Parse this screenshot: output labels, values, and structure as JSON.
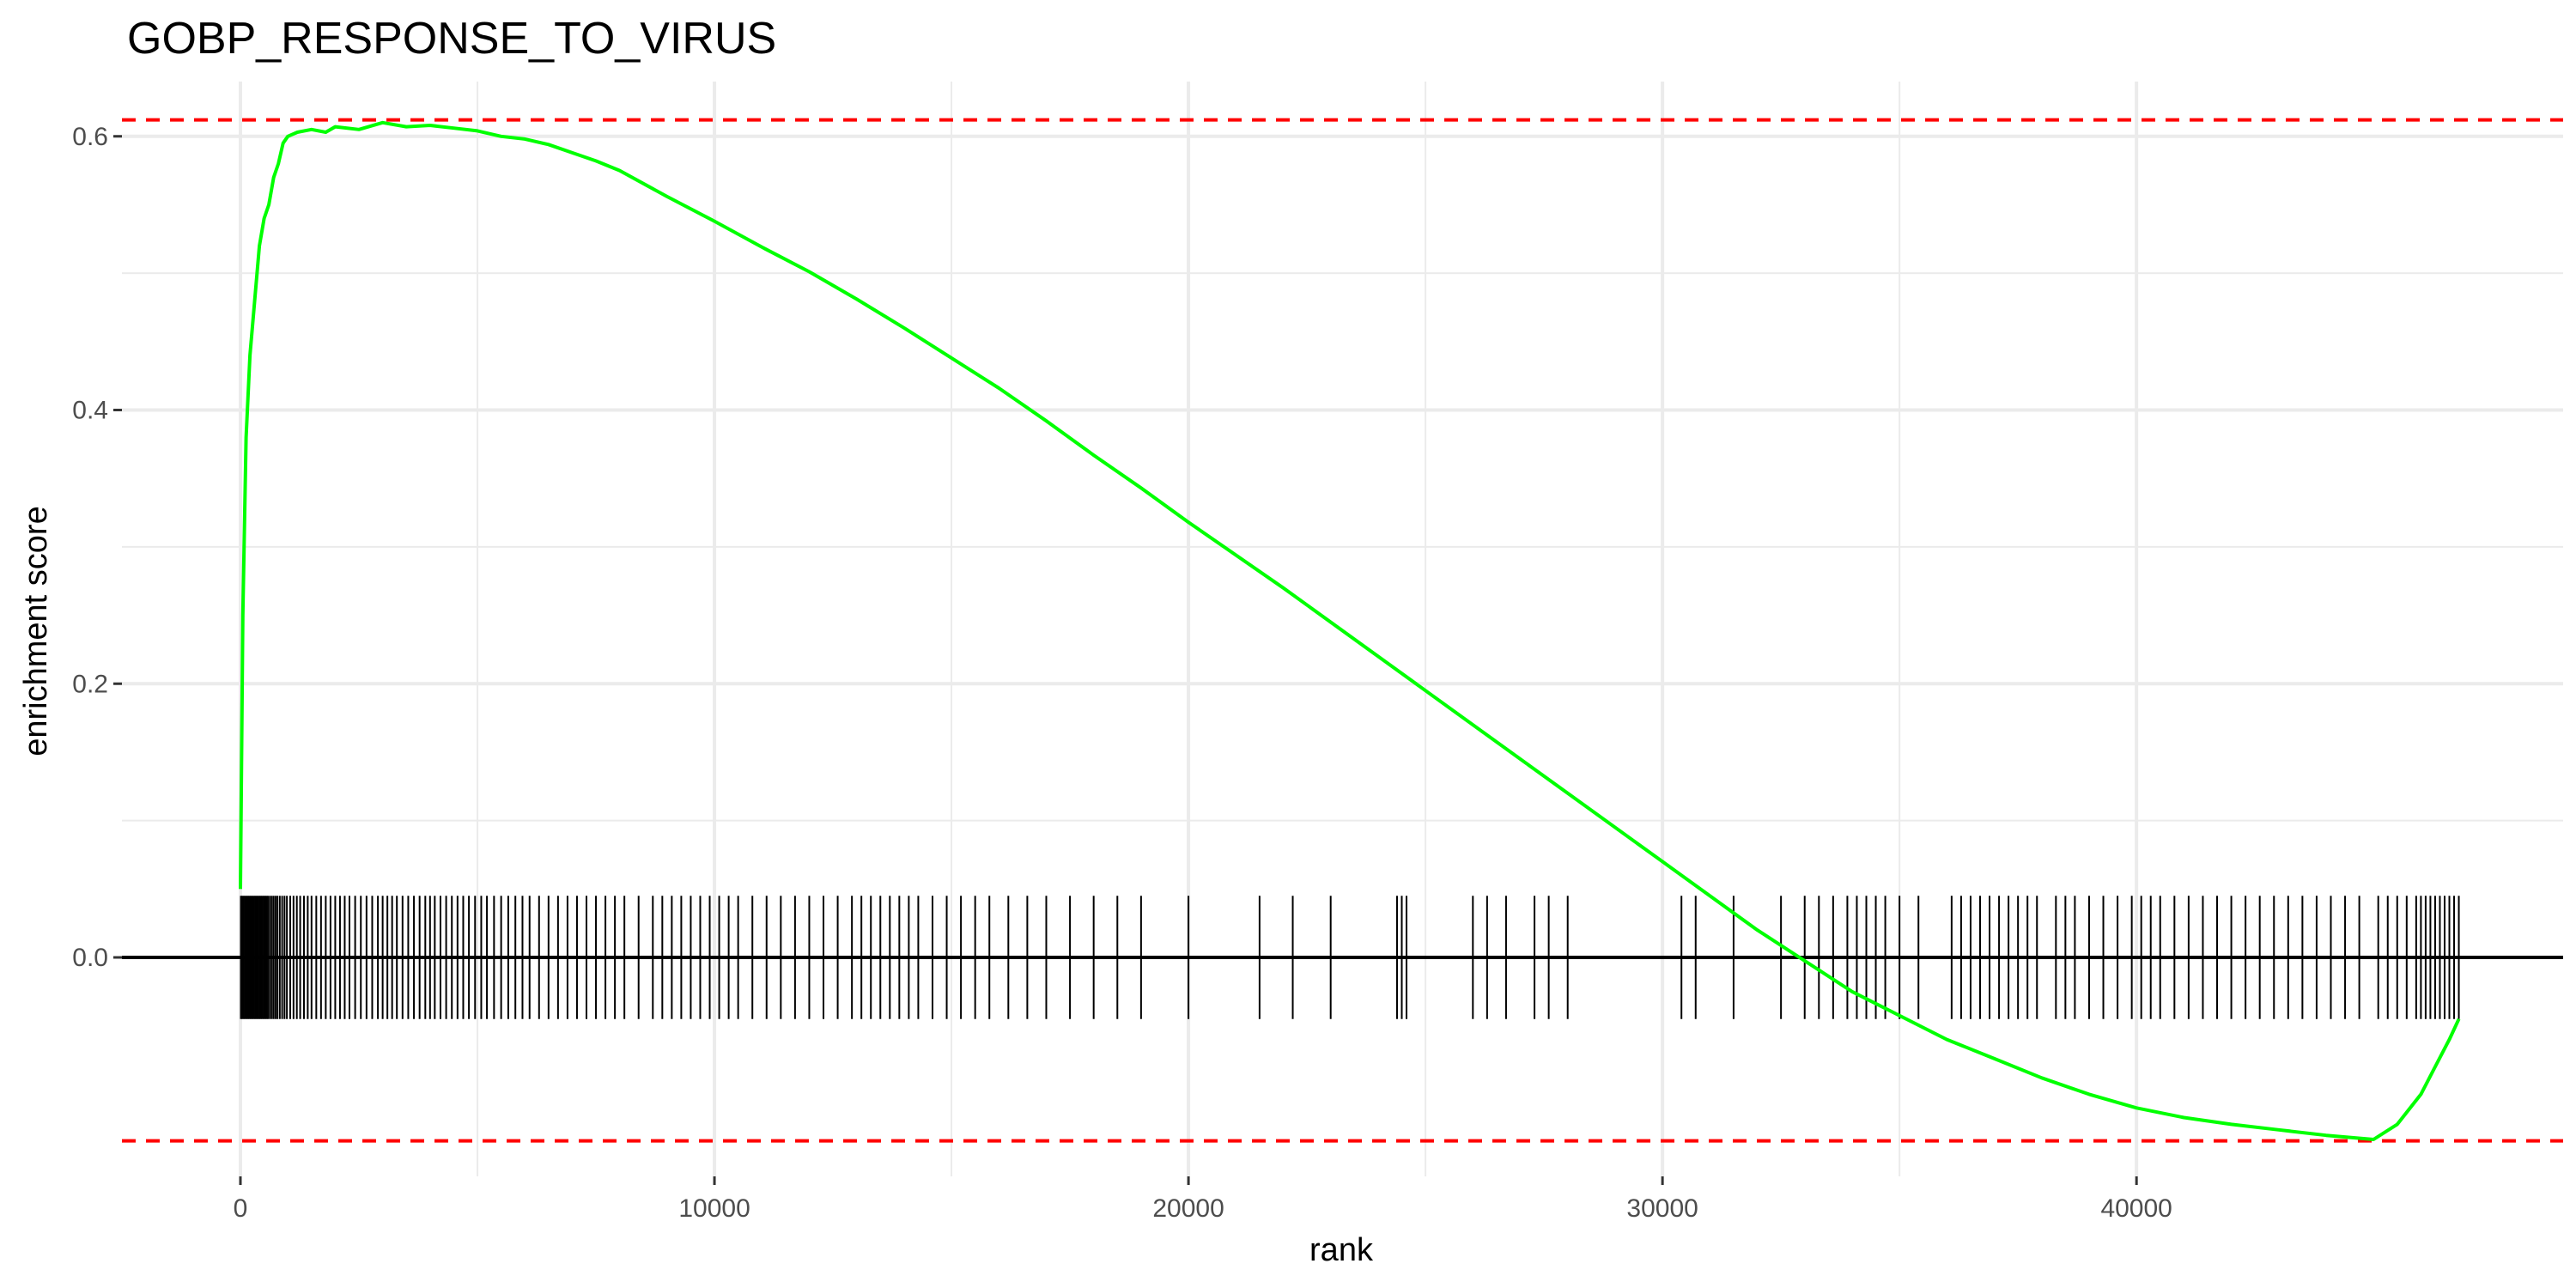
{
  "chart_data": {
    "type": "line",
    "title": "GOBP_RESPONSE_TO_VIRUS",
    "xlabel": "rank",
    "ylabel": "enrichment score",
    "xlim": [
      -2500,
      49000
    ],
    "ylim": [
      -0.16,
      0.64
    ],
    "xticks": [
      0,
      10000,
      20000,
      30000,
      40000
    ],
    "yticks": [
      0.0,
      0.2,
      0.4,
      0.6
    ],
    "xtick_labels": [
      "0",
      "10000",
      "20000",
      "30000",
      "40000"
    ],
    "ytick_labels": [
      "0.0",
      "0.2",
      "0.4",
      "0.6"
    ],
    "grid": true,
    "colors": {
      "curve": "#00ff00",
      "threshold": "#ff0000",
      "ticks": "#000000",
      "zero_line": "#000000",
      "grid": "#ebebeb"
    },
    "thresholds": {
      "max": 0.612,
      "min": -0.134
    },
    "series": [
      {
        "x": [
          0,
          50,
          120,
          200,
          300,
          400,
          500,
          600,
          700,
          800,
          900,
          1000,
          1200,
          1500,
          1800,
          2000,
          2500,
          3000,
          3500,
          4000,
          4500,
          5000,
          5500,
          6000,
          6500,
          7000,
          7500,
          8000,
          9000,
          10000,
          11000,
          12000,
          13000,
          14000,
          15000,
          16000,
          17000,
          18000,
          19000,
          20000,
          22000,
          24000,
          26000,
          28000,
          30000,
          32000,
          34000,
          36000,
          37000,
          38000,
          39000,
          40000,
          41000,
          42000,
          43000,
          44000,
          45000,
          45500,
          46000,
          46300,
          46600,
          46800
        ],
        "y": [
          0.05,
          0.25,
          0.38,
          0.44,
          0.48,
          0.52,
          0.54,
          0.55,
          0.57,
          0.58,
          0.595,
          0.6,
          0.603,
          0.605,
          0.603,
          0.607,
          0.605,
          0.61,
          0.607,
          0.608,
          0.606,
          0.604,
          0.6,
          0.598,
          0.594,
          0.588,
          0.582,
          0.575,
          0.556,
          0.538,
          0.519,
          0.501,
          0.481,
          0.46,
          0.438,
          0.416,
          0.392,
          0.367,
          0.343,
          0.318,
          0.27,
          0.22,
          0.17,
          0.12,
          0.07,
          0.02,
          -0.025,
          -0.06,
          -0.074,
          -0.088,
          -0.1,
          -0.11,
          -0.117,
          -0.122,
          -0.126,
          -0.13,
          -0.133,
          -0.122,
          -0.1,
          -0.08,
          -0.06,
          -0.045
        ]
      }
    ],
    "gene_hits": [
      10,
      40,
      70,
      100,
      130,
      160,
      190,
      220,
      250,
      280,
      310,
      340,
      370,
      400,
      430,
      460,
      490,
      520,
      550,
      580,
      620,
      660,
      700,
      740,
      780,
      830,
      880,
      930,
      980,
      1050,
      1120,
      1190,
      1260,
      1340,
      1420,
      1500,
      1600,
      1700,
      1800,
      1900,
      2000,
      2100,
      2200,
      2300,
      2420,
      2540,
      2660,
      2780,
      2900,
      3000,
      3100,
      3200,
      3300,
      3420,
      3540,
      3660,
      3780,
      3900,
      4000,
      4100,
      4220,
      4340,
      4460,
      4580,
      4700,
      4820,
      4950,
      5080,
      5200,
      5350,
      5500,
      5650,
      5800,
      5950,
      6100,
      6300,
      6500,
      6700,
      6900,
      7100,
      7300,
      7500,
      7700,
      7900,
      8100,
      8400,
      8700,
      8900,
      9100,
      9300,
      9500,
      9700,
      9900,
      10100,
      10300,
      10500,
      10800,
      11100,
      11400,
      11700,
      12000,
      12300,
      12600,
      12900,
      13100,
      13300,
      13500,
      13700,
      13900,
      14100,
      14300,
      14600,
      14900,
      15200,
      15500,
      15800,
      16200,
      16600,
      17000,
      17500,
      18000,
      18500,
      19000,
      20000,
      21500,
      22200,
      23000,
      24400,
      24500,
      24600,
      26000,
      26300,
      26700,
      27300,
      27600,
      28000,
      30400,
      30700,
      31500,
      32500,
      33000,
      33300,
      33600,
      33900,
      34100,
      34300,
      34500,
      34700,
      35000,
      35400,
      36100,
      36300,
      36500,
      36700,
      36900,
      37100,
      37300,
      37500,
      37700,
      37900,
      38300,
      38500,
      38700,
      39000,
      39300,
      39600,
      39900,
      40100,
      40300,
      40500,
      40800,
      41100,
      41400,
      41700,
      42000,
      42300,
      42600,
      42900,
      43200,
      43500,
      43800,
      44100,
      44400,
      44700,
      45100,
      45300,
      45500,
      45700,
      45900,
      46000,
      46100,
      46200,
      46300,
      46400,
      46500,
      46600,
      46700,
      46800
    ]
  }
}
